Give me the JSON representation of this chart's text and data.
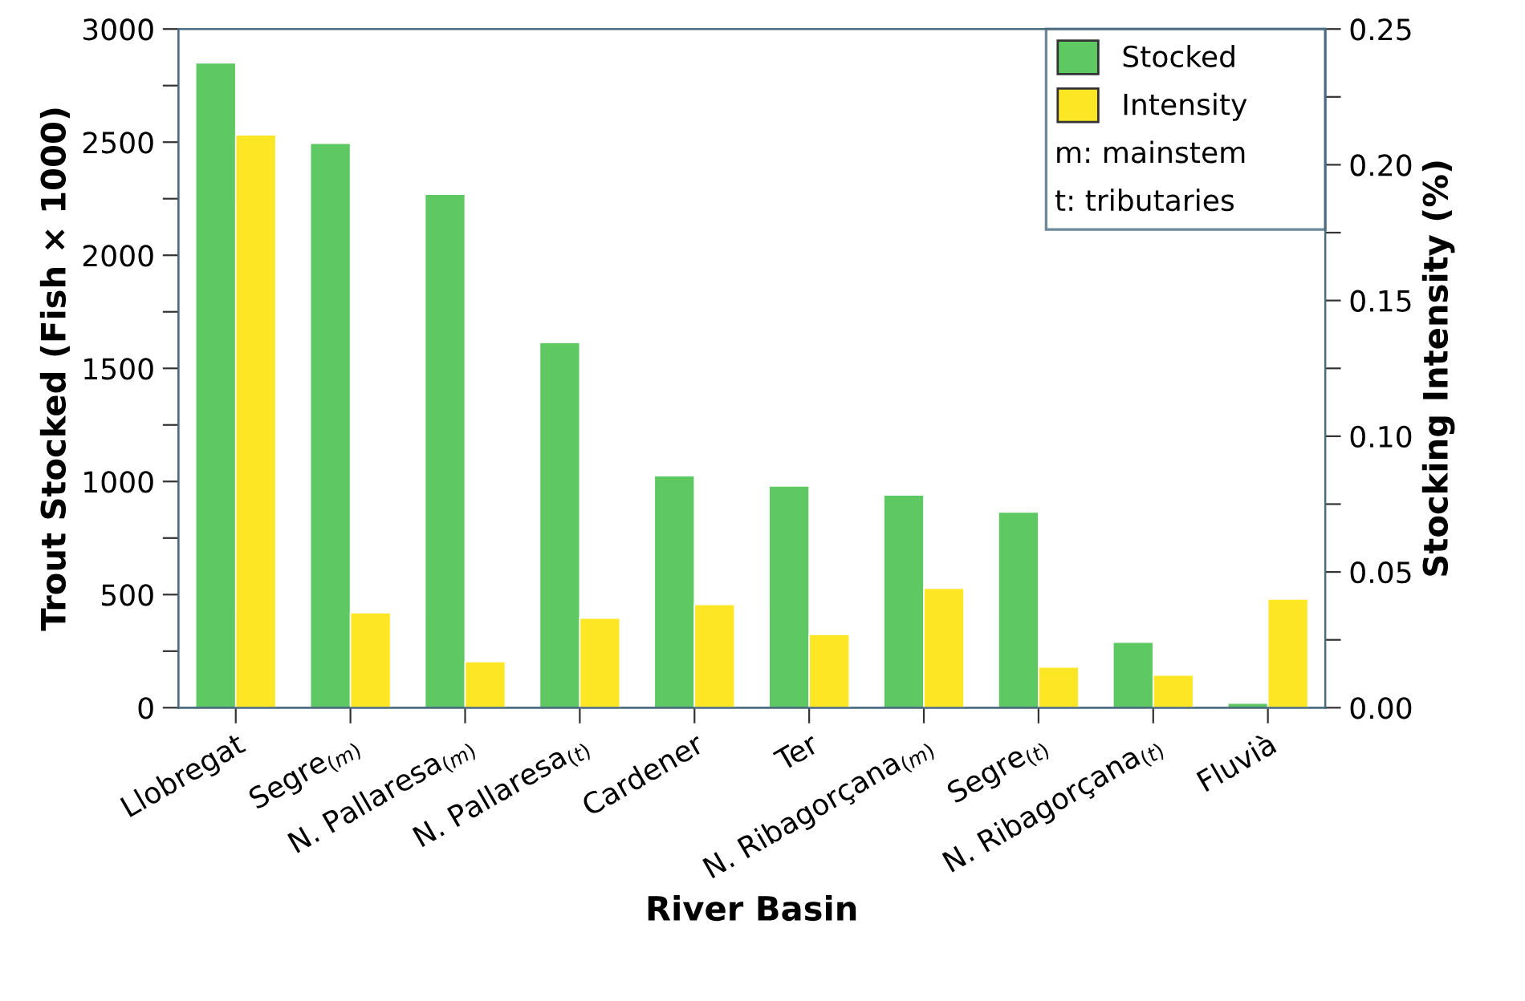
{
  "chart_data": {
    "type": "bar",
    "xlabel": "River Basin",
    "ylabel": "Trout Stocked (Fish × 1000)",
    "y2label": "Stocking Intensity (%)",
    "categories": [
      "Llobregat",
      "Segre$_{(m)}$",
      "N. Pallaresa$_{(m)}$",
      "N. Pallaresa$_{(t)}$",
      "Cardener",
      "Ter",
      "N. Ribagorçana$_{(m)}$",
      "Segre$_{(t)}$",
      "N. Ribagorçana$_{(t)}$",
      "Fluvià"
    ],
    "series": [
      {
        "name": "Stocked",
        "color": "#5ec962",
        "values": [
          2850,
          2495,
          2270,
          1615,
          1025,
          980,
          940,
          865,
          290,
          20
        ]
      },
      {
        "name": "Intensity",
        "color": "#fde725",
        "axis": "y2",
        "values": [
          0.211,
          0.035,
          0.017,
          0.033,
          0.038,
          0.027,
          0.044,
          0.015,
          0.012,
          0.04
        ]
      }
    ],
    "ylim": [
      0,
      3000
    ],
    "yticks": [
      0,
      {
        "value": 250,
        "label": null
      },
      500,
      {
        "value": 750,
        "label": null
      },
      1000,
      {
        "value": 1250,
        "label": null
      },
      1500,
      {
        "value": 1750,
        "label": null
      },
      2000,
      {
        "value": 2250,
        "label": null
      },
      2500,
      {
        "value": 2750,
        "label": null
      },
      3000
    ],
    "y2lim": [
      0,
      0.25
    ],
    "y2ticks": [
      {
        "value": 0,
        "label": "0.00"
      },
      {
        "value": 0.025,
        "label": null
      },
      {
        "value": 0.05,
        "label": "0.05"
      },
      {
        "value": 0.075,
        "label": null
      },
      {
        "value": 0.1,
        "label": "0.10"
      },
      {
        "value": 0.125,
        "label": null
      },
      {
        "value": 0.15,
        "label": "0.15"
      },
      {
        "value": 0.175,
        "label": null
      },
      {
        "value": 0.2,
        "label": "0.20"
      },
      {
        "value": 0.225,
        "label": null
      },
      {
        "value": 0.25,
        "label": "0.25"
      }
    ],
    "annotations": [
      "m: mainstem",
      "t: tributaries"
    ],
    "legend": "top right",
    "grid": false
  }
}
